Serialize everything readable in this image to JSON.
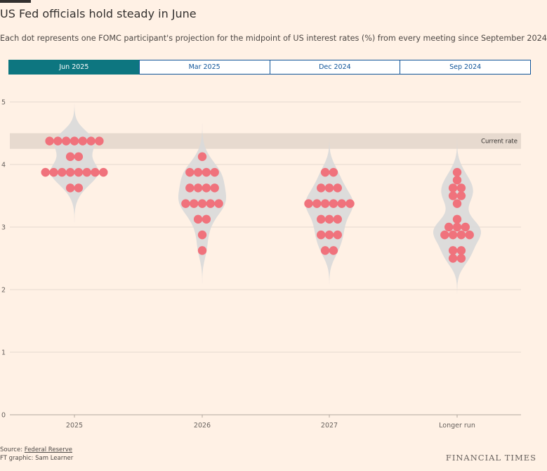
{
  "header": {
    "title": "US Fed officials hold steady in June",
    "subtitle": "Each dot represents one FOMC participant's projection for the midpoint of US interest rates (%) from every meeting since September 2024"
  },
  "tabs": [
    {
      "label": "Jun 2025",
      "active": true
    },
    {
      "label": "Mar 2025",
      "active": false
    },
    {
      "label": "Dec 2024",
      "active": false
    },
    {
      "label": "Sep 2024",
      "active": false
    }
  ],
  "colors": {
    "accent": "#0d7680",
    "dot": "#f0727c",
    "violin": "#d9d9d9",
    "current_band": "#e7dacf",
    "background": "#fff1e5"
  },
  "chart_data": {
    "type": "scatter",
    "ylim": [
      0,
      5
    ],
    "yticks": [
      "0",
      "1",
      "2",
      "3",
      "4",
      "5"
    ],
    "categories": [
      "2025",
      "2026",
      "2027",
      "Longer run"
    ],
    "current_rate": {
      "label": "Current rate",
      "range": [
        4.25,
        4.5
      ]
    },
    "series": [
      {
        "category": "2025",
        "values": [
          4.375,
          4.375,
          4.375,
          4.375,
          4.375,
          4.375,
          4.375,
          4.125,
          4.125,
          3.875,
          3.875,
          3.875,
          3.875,
          3.875,
          3.875,
          3.875,
          3.875,
          3.625,
          3.625
        ]
      },
      {
        "category": "2026",
        "values": [
          4.125,
          3.875,
          3.875,
          3.875,
          3.875,
          3.625,
          3.625,
          3.625,
          3.625,
          3.375,
          3.375,
          3.375,
          3.375,
          3.375,
          3.125,
          3.125,
          2.875,
          2.625
        ]
      },
      {
        "category": "2027",
        "values": [
          3.875,
          3.875,
          3.625,
          3.625,
          3.625,
          3.375,
          3.375,
          3.375,
          3.375,
          3.375,
          3.375,
          3.125,
          3.125,
          3.125,
          2.875,
          2.875,
          2.875,
          2.625,
          2.625
        ]
      },
      {
        "category": "Longer run",
        "values": [
          3.875,
          3.75,
          3.625,
          3.625,
          3.5,
          3.5,
          3.375,
          3.125,
          3.0,
          3.0,
          3.0,
          2.875,
          2.875,
          2.875,
          2.875,
          2.625,
          2.625,
          2.5,
          2.5
        ]
      }
    ]
  },
  "footer": {
    "source_prefix": "Source: ",
    "source_link": "Federal Reserve",
    "credit": "FT graphic: Sam Learner",
    "logo": "FINANCIAL TIMES"
  }
}
